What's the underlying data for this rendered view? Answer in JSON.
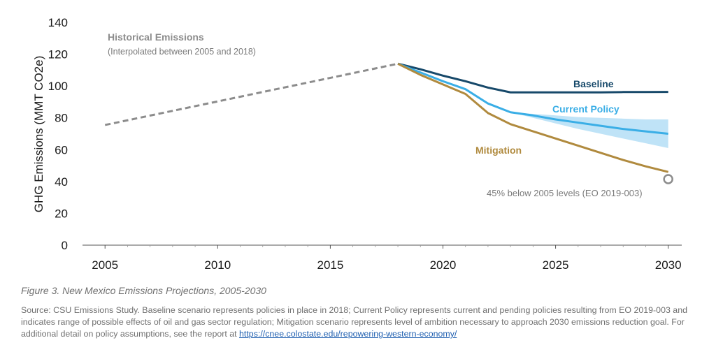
{
  "chart_data": {
    "type": "line",
    "title": "New Mexico Emissions Projections, 2005-2030",
    "xlabel": "",
    "ylabel": "GHG Emissions (MMT CO2e)",
    "xlim": [
      2005,
      2030
    ],
    "ylim": [
      0,
      140
    ],
    "xticks": [
      2005,
      2010,
      2015,
      2020,
      2025,
      2030
    ],
    "yticks": [
      0,
      20,
      40,
      60,
      80,
      100,
      120,
      140
    ],
    "grid": false,
    "series": [
      {
        "name": "Historical Emissions",
        "style": "dashed",
        "color": "#8c8c8c",
        "x": [
          2005,
          2018
        ],
        "y": [
          75.5,
          114
        ]
      },
      {
        "name": "Baseline",
        "color": "#17496a",
        "x": [
          2018,
          2019,
          2020,
          2021,
          2022,
          2023,
          2024,
          2025,
          2026,
          2027,
          2028,
          2029,
          2030
        ],
        "y": [
          114,
          110.5,
          106.5,
          103,
          99,
          96,
          96,
          96,
          96,
          96,
          96.2,
          96.2,
          96.3
        ]
      },
      {
        "name": "Current Policy",
        "color": "#3aaee6",
        "x": [
          2018,
          2019,
          2020,
          2021,
          2022,
          2023,
          2024,
          2025,
          2026,
          2027,
          2028,
          2029,
          2030
        ],
        "y": [
          114,
          108.5,
          103,
          98,
          89,
          83.5,
          81.5,
          79,
          77,
          75,
          73,
          71.5,
          70
        ],
        "band_x": [
          2023,
          2024,
          2025,
          2026,
          2027,
          2028,
          2029,
          2030
        ],
        "band_upper": [
          83.5,
          82.5,
          81.5,
          80.5,
          80,
          79.5,
          79,
          79
        ],
        "band_lower": [
          83.5,
          80,
          76.5,
          73,
          70,
          67,
          64,
          61
        ]
      },
      {
        "name": "Mitigation",
        "color": "#b08a3e",
        "x": [
          2018,
          2019,
          2020,
          2021,
          2022,
          2023,
          2024,
          2025,
          2026,
          2027,
          2028,
          2029,
          2030
        ],
        "y": [
          114,
          107,
          101,
          95,
          83,
          76,
          71.5,
          67,
          62.5,
          58,
          53.5,
          49.5,
          46
        ]
      },
      {
        "name": "45% below 2005 levels (EO 2019-003)",
        "type": "marker",
        "color": "#8c8c8c",
        "x": [
          2030
        ],
        "y": [
          41.5
        ]
      }
    ],
    "annotations": {
      "historical_title": "Historical Emissions",
      "historical_sub": "(Interpolated between 2005 and 2018)",
      "baseline": "Baseline",
      "current_policy": "Current Policy",
      "mitigation": "Mitigation",
      "target": "45% below 2005 levels (EO 2019-003)"
    }
  },
  "caption": "Figure 3. New Mexico Emissions Projections, 2005-2030",
  "source": {
    "text": "Source: CSU Emissions Study. Baseline scenario represents policies in place in 2018; Current Policy represents current and pending policies resulting from EO 2019-003 and indicates range of possible effects of oil and gas sector regulation; Mitigation scenario represents level of ambition necessary to approach 2030 emissions reduction goal. For additional detail on policy assumptions, see the report at",
    "link": "https://cnee.colostate.edu/repowering-western-economy/"
  }
}
